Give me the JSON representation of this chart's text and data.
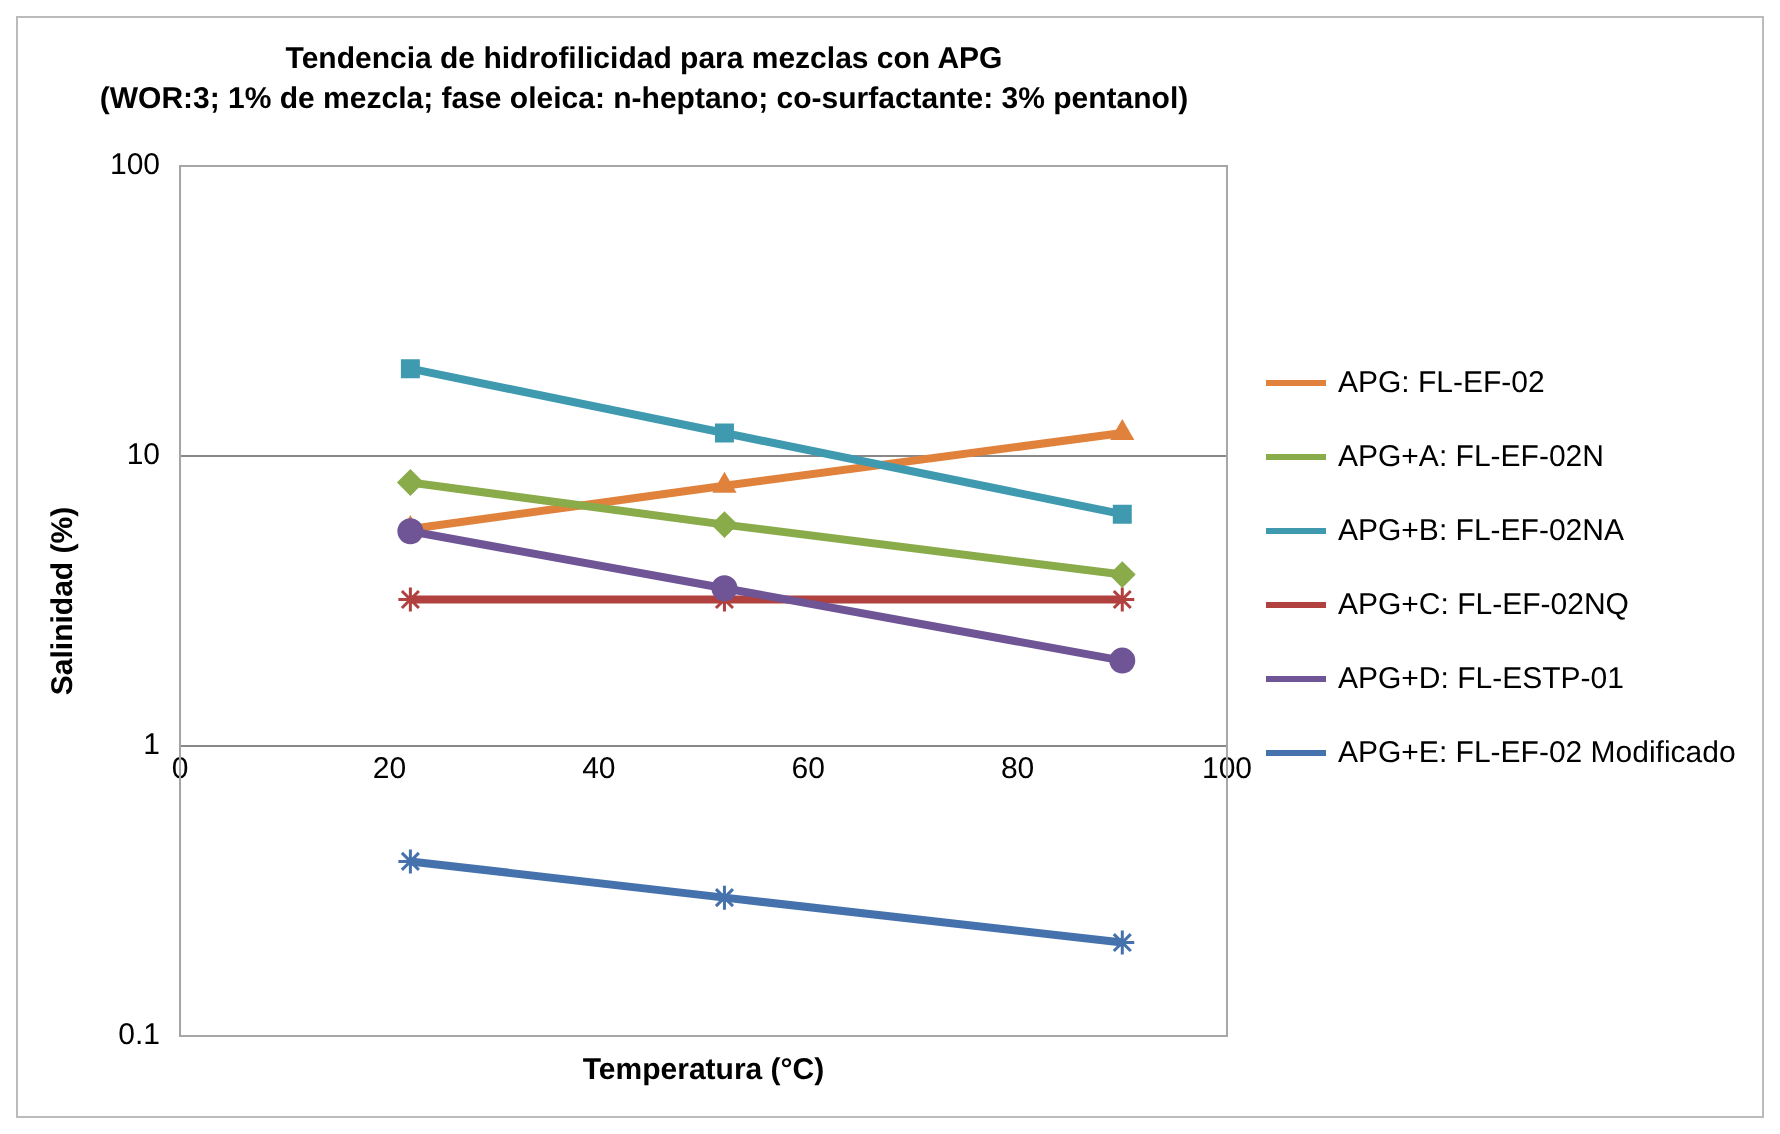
{
  "chart_data": {
    "type": "line",
    "title": "Tendencia de hidrofilicidad para mezclas con APG",
    "subtitle": "(WOR:3; 1% de mezcla; fase oleica: n-heptano; co-surfactante: 3% pentanol)",
    "xlabel": "Temperatura (°C)",
    "ylabel": "Salinidad (%)",
    "x": [
      22,
      52,
      90
    ],
    "xlim": [
      0,
      100
    ],
    "xticks": [
      0,
      20,
      40,
      60,
      80,
      100
    ],
    "ylim": [
      0.1,
      100
    ],
    "yticks": [
      0.1,
      1,
      10,
      100
    ],
    "log": "y",
    "grid": "y",
    "legend": "right",
    "line_style": "solid",
    "series": [
      {
        "name": "APG: FL-EF-02",
        "color": "#e0823c",
        "marker": "triangle",
        "values": [
          5.6,
          7.9,
          12
        ]
      },
      {
        "name": "APG+A: FL-EF-02N",
        "color": "#8aab4a",
        "marker": "diamond",
        "values": [
          8.1,
          5.8,
          3.9
        ]
      },
      {
        "name": "APG+B: FL-EF-02NA",
        "color": "#3f9ab0",
        "marker": "square",
        "values": [
          20,
          12,
          6.3
        ]
      },
      {
        "name": "APG+C: FL-EF-02NQ",
        "color": "#b0413e",
        "marker": "cross",
        "values": [
          3.2,
          3.2,
          3.2
        ]
      },
      {
        "name": "APG+D: FL-ESTP-01",
        "color": "#6f5595",
        "marker": "circle",
        "values": [
          5.5,
          3.5,
          1.97
        ]
      },
      {
        "name": "APG+E: FL-EF-02 Modificado",
        "color": "#4572ad",
        "marker": "cross",
        "values": [
          0.4,
          0.3,
          0.21
        ]
      }
    ]
  }
}
